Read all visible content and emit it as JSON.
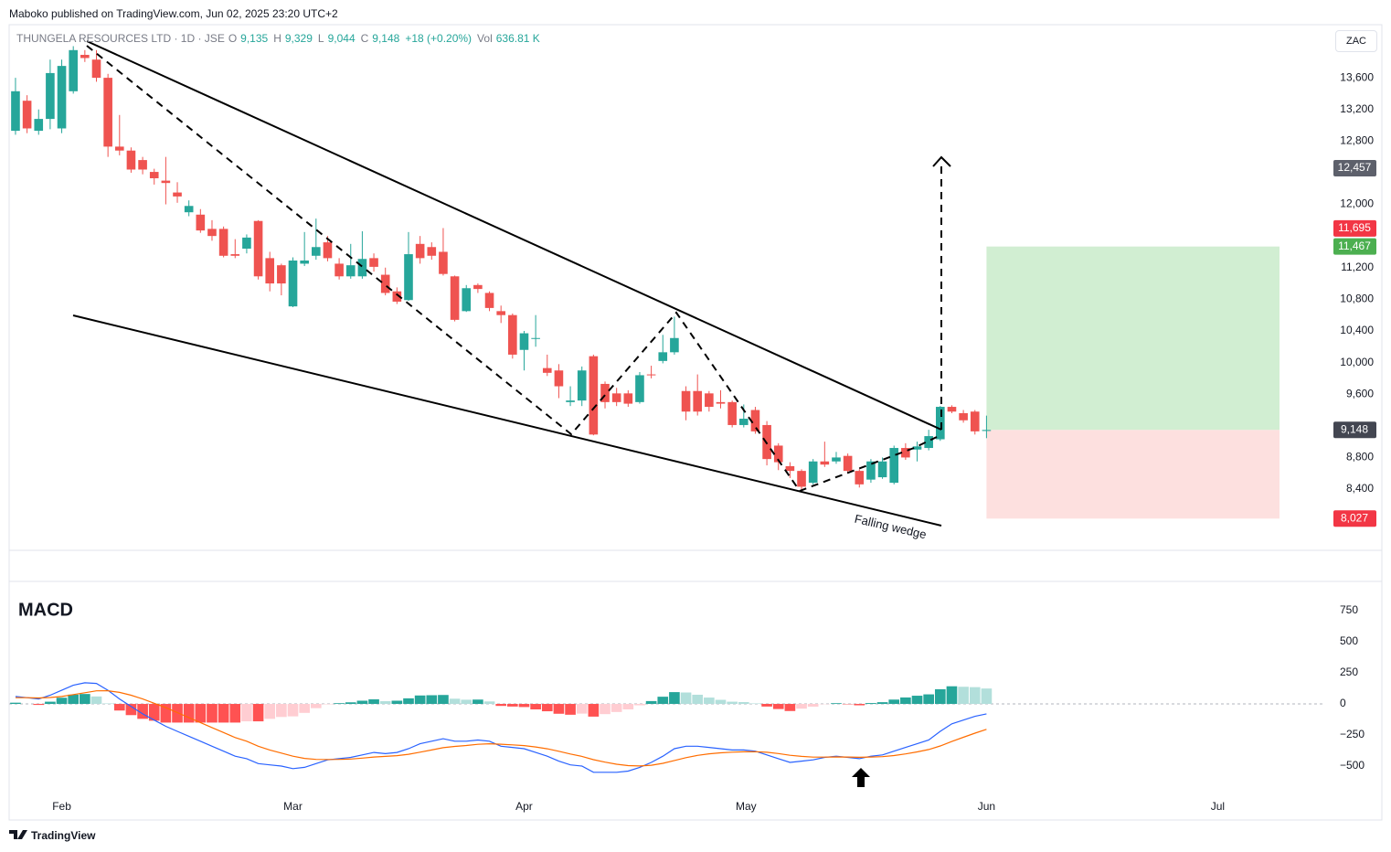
{
  "header": {
    "publisher": "Maboko published on TradingView.com, Jun 02, 2025 23:20 UTC+2",
    "currency": "ZAC",
    "footer": "TradingView"
  },
  "legend": {
    "symbol": "THUNGELA RESOURCES LTD · 1D · JSE",
    "open_label": "O",
    "open": "9,135",
    "high_label": "H",
    "high": "9,329",
    "low_label": "L",
    "low": "9,044",
    "close_label": "C",
    "close": "9,148",
    "change": "+18 (+0.20%)",
    "volume_label": "Vol",
    "volume": "636.81 K"
  },
  "chart_data": [
    {
      "type": "candlestick",
      "up_color": "#26a69a",
      "down_color": "#ef5350",
      "annotation": "Falling wedge",
      "open": [
        12930,
        13310,
        12930,
        13080,
        12960,
        13430,
        13890,
        13830,
        13600,
        12730,
        12680,
        12560,
        12410,
        12300,
        12150,
        11900,
        11870,
        11690,
        11690,
        11370,
        11440,
        11790,
        11320,
        11230,
        10710,
        11250,
        11350,
        11520,
        11250,
        11090,
        11090,
        11320,
        11110,
        10900,
        10790,
        11500,
        11460,
        11400,
        11090,
        10650,
        10980,
        10880,
        10650,
        10600,
        10160,
        10300,
        9930,
        9900,
        9500,
        9520,
        10080,
        9730,
        9610,
        9610,
        9500,
        9850,
        10020,
        10130,
        9640,
        9640,
        9610,
        9500,
        9500,
        9210,
        9400,
        9210,
        8950,
        8690,
        8630,
        8480,
        8750,
        8750,
        8820,
        8630,
        8520,
        8550,
        8480,
        8920,
        8900,
        8920,
        9030,
        9440,
        9360,
        9380,
        9135
      ],
      "high": [
        13600,
        13380,
        13200,
        13830,
        13830,
        14000,
        13950,
        13950,
        13650,
        13130,
        12720,
        12600,
        12450,
        12600,
        12280,
        12050,
        11940,
        11800,
        11720,
        11560,
        11620,
        11800,
        11400,
        11250,
        11330,
        11650,
        11820,
        11600,
        11320,
        11500,
        11660,
        11380,
        11200,
        10950,
        11650,
        11600,
        11520,
        11700,
        11100,
        10980,
        11000,
        10900,
        10720,
        10620,
        10400,
        10600,
        10100,
        9980,
        9700,
        9950,
        10100,
        9760,
        9680,
        9650,
        9880,
        9960,
        10350,
        10580,
        9700,
        9850,
        9640,
        9650,
        9520,
        9470,
        9440,
        9260,
        8980,
        8740,
        8650,
        8780,
        9000,
        8870,
        8850,
        8650,
        8780,
        8800,
        8950,
        8980,
        9000,
        9150,
        9450,
        9460,
        9400,
        9400,
        9329
      ],
      "low": [
        12880,
        12900,
        12880,
        12950,
        12900,
        13400,
        13800,
        13550,
        12600,
        12620,
        12400,
        12380,
        12250,
        12000,
        12020,
        11850,
        11640,
        11540,
        11330,
        11320,
        11380,
        11050,
        10900,
        10850,
        10700,
        11220,
        11300,
        11280,
        11050,
        11060,
        11060,
        11150,
        10850,
        10740,
        10780,
        11250,
        11300,
        11100,
        10520,
        10640,
        10880,
        10650,
        10500,
        10050,
        9900,
        10200,
        9830,
        9550,
        9450,
        9450,
        9080,
        9420,
        9450,
        9440,
        9480,
        9800,
        9990,
        10100,
        9270,
        9330,
        9380,
        9420,
        9180,
        9180,
        9100,
        8700,
        8640,
        8540,
        8380,
        8460,
        8680,
        8720,
        8600,
        8420,
        8480,
        8530,
        8460,
        8770,
        8750,
        8890,
        9010,
        9360,
        9240,
        9090,
        9044
      ],
      "close": [
        13430,
        12960,
        13080,
        13660,
        13750,
        13950,
        13850,
        13600,
        12730,
        12680,
        12440,
        12440,
        12330,
        12270,
        12100,
        11980,
        11670,
        11600,
        11350,
        11350,
        11580,
        11090,
        11000,
        11000,
        11290,
        11290,
        11460,
        11320,
        11090,
        11230,
        11310,
        11210,
        10880,
        10770,
        11370,
        11320,
        11350,
        11120,
        10540,
        10940,
        10930,
        10690,
        10600,
        10100,
        10370,
        10310,
        9870,
        9700,
        9520,
        9900,
        9090,
        9500,
        9500,
        9480,
        9840,
        9840,
        10130,
        10310,
        9380,
        9380,
        9440,
        9480,
        9210,
        9290,
        9130,
        8780,
        8740,
        8630,
        8430,
        8750,
        8710,
        8800,
        8630,
        8460,
        8750,
        8750,
        8920,
        8800,
        8940,
        9070,
        9440,
        9380,
        9270,
        9130,
        9148
      ],
      "xlim": [
        -0.55,
        113.3
      ],
      "ylim": [
        7626,
        14260
      ],
      "xticks": [
        {
          "value": 4,
          "label": "Feb"
        },
        {
          "value": 24,
          "label": "Mar"
        },
        {
          "value": 44,
          "label": "Apr"
        },
        {
          "value": 63.2,
          "label": "May"
        },
        {
          "value": 84,
          "label": "Jun"
        },
        {
          "value": 104,
          "label": "Jul"
        }
      ],
      "yticks": [
        {
          "value": 8400,
          "label": "8,400"
        },
        {
          "value": 8800,
          "label": "8,800"
        },
        {
          "value": 9600,
          "label": "9,600"
        },
        {
          "value": 10000,
          "label": "10,000"
        },
        {
          "value": 10400,
          "label": "10,400"
        },
        {
          "value": 10800,
          "label": "10,800"
        },
        {
          "value": 11200,
          "label": "11,200"
        },
        {
          "value": 12000,
          "label": "12,000"
        },
        {
          "value": 12800,
          "label": "12,800"
        },
        {
          "value": 13200,
          "label": "13,200"
        },
        {
          "value": 13600,
          "label": "13,600"
        }
      ],
      "price_labels": [
        {
          "value": 12457,
          "label": "12,457",
          "color": "#5d606b"
        },
        {
          "value": 11695,
          "label": "11,695",
          "color": "#f23645"
        },
        {
          "value": 11467,
          "label": "11,467",
          "color": "#4caf50"
        },
        {
          "value": 9148,
          "label": "9,148",
          "color": "#434651"
        },
        {
          "value": 8027,
          "label": "8,027",
          "color": "#f23645"
        }
      ],
      "position": {
        "entry": 9148,
        "target": 11467,
        "stop": 8027,
        "profit_color": "#d1eed2",
        "loss_color": "#fde0df"
      }
    },
    {
      "type": "macd",
      "title": "MACD",
      "ylim": [
        -735,
        978
      ],
      "yticks": [
        {
          "value": -500,
          "label": "−500"
        },
        {
          "value": -250,
          "label": "−250"
        },
        0,
        250,
        500,
        750
      ],
      "histogram_colors": [
        "#26a69a",
        "#b2dfdb",
        "#ffcdd2",
        "#ff5252"
      ],
      "series": [
        {
          "name": "MACD",
          "color": "#2962ff",
          "values": [
            60,
            50,
            40,
            70,
            110,
            150,
            170,
            165,
            110,
            40,
            -20,
            -80,
            -130,
            -180,
            -220,
            -260,
            -300,
            -340,
            -380,
            -420,
            -440,
            -480,
            -490,
            -500,
            -520,
            -510,
            -480,
            -450,
            -440,
            -430,
            -410,
            -390,
            -400,
            -390,
            -360,
            -320,
            -300,
            -280,
            -300,
            -300,
            -290,
            -300,
            -340,
            -350,
            -360,
            -390,
            -420,
            -460,
            -490,
            -500,
            -550,
            -550,
            -550,
            -540,
            -510,
            -470,
            -420,
            -360,
            -340,
            -340,
            -350,
            -360,
            -370,
            -370,
            -380,
            -410,
            -440,
            -470,
            -460,
            -450,
            -430,
            -420,
            -430,
            -440,
            -420,
            -410,
            -380,
            -350,
            -320,
            -290,
            -220,
            -160,
            -130,
            -100,
            -80
          ]
        },
        {
          "name": "Signal",
          "color": "#ff6d00",
          "values": [
            50,
            50,
            48,
            52,
            60,
            75,
            90,
            105,
            106,
            93,
            70,
            40,
            5,
            -30,
            -70,
            -110,
            -150,
            -190,
            -230,
            -270,
            -300,
            -340,
            -370,
            -395,
            -420,
            -438,
            -446,
            -447,
            -446,
            -443,
            -436,
            -427,
            -422,
            -416,
            -405,
            -388,
            -370,
            -352,
            -342,
            -334,
            -325,
            -320,
            -324,
            -329,
            -335,
            -346,
            -361,
            -381,
            -403,
            -422,
            -448,
            -468,
            -485,
            -496,
            -499,
            -493,
            -478,
            -455,
            -432,
            -414,
            -401,
            -393,
            -388,
            -385,
            -384,
            -389,
            -399,
            -413,
            -422,
            -428,
            -428,
            -426,
            -427,
            -429,
            -427,
            -424,
            -415,
            -402,
            -386,
            -367,
            -338,
            -302,
            -268,
            -235,
            -204
          ]
        }
      ],
      "histogram": [
        10,
        0,
        -8,
        18,
        50,
        75,
        80,
        60,
        4,
        -53,
        -90,
        -120,
        -135,
        -150,
        -150,
        -150,
        -150,
        -150,
        -150,
        -150,
        -140,
        -140,
        -120,
        -105,
        -100,
        -72,
        -34,
        -3,
        6,
        13,
        26,
        37,
        22,
        26,
        45,
        68,
        70,
        72,
        42,
        34,
        35,
        20,
        -16,
        -21,
        -25,
        -44,
        -59,
        -79,
        -87,
        -78,
        -102,
        -82,
        -65,
        -44,
        -11,
        23,
        58,
        95,
        92,
        74,
        51,
        33,
        18,
        15,
        4,
        -21,
        -41,
        -57,
        -38,
        -22,
        -2,
        6,
        -3,
        -11,
        7,
        14,
        35,
        52,
        66,
        77,
        118,
        142,
        138,
        135,
        124
      ]
    }
  ]
}
